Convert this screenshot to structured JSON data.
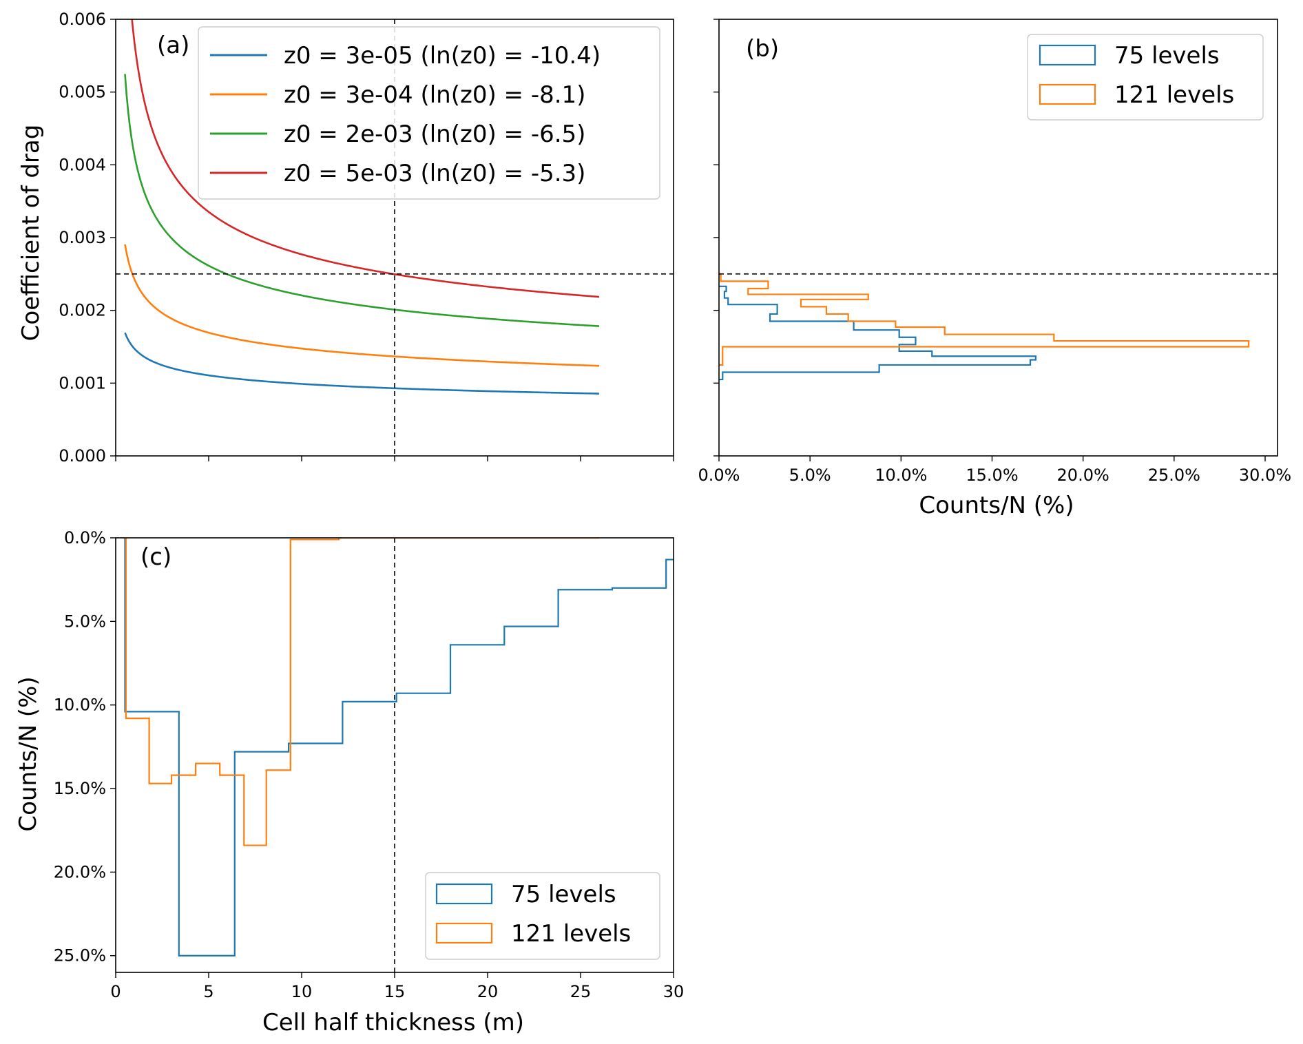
{
  "chart_data": [
    {
      "panel": "a",
      "type": "line",
      "panel_label": "(a)",
      "xlabel": "",
      "ylabel": "Coefficient of drag",
      "xlim": [
        0,
        30
      ],
      "ylim": [
        0,
        0.006
      ],
      "yticks": [
        "0.000",
        "0.001",
        "0.002",
        "0.003",
        "0.004",
        "0.005",
        "0.006"
      ],
      "yticks_values": [
        0,
        0.001,
        0.002,
        0.003,
        0.004,
        0.005,
        0.006
      ],
      "xticks_values": [
        0,
        5,
        10,
        15,
        20,
        25,
        30
      ],
      "legend_position": "top-right",
      "series": [
        {
          "name": "z0 = 3e-05 (ln(z0) = -10.4)",
          "z0": 3e-05,
          "color": "#1f77b4"
        },
        {
          "name": "z0 = 3e-04 (ln(z0) = -8.1)",
          "z0": 0.0003,
          "color": "#ff7f0e"
        },
        {
          "name": "z0 = 2e-03 (ln(z0) = -6.5)",
          "z0": 0.002,
          "color": "#2ca02c"
        },
        {
          "name": "z0 = 5e-03 (ln(z0) = -5.3)",
          "z0": 0.005,
          "color": "#d62728"
        }
      ],
      "x_range": [
        0.5,
        26
      ],
      "hline": 0.0025,
      "vline": 15
    },
    {
      "panel": "b",
      "type": "histogram",
      "panel_label": "(b)",
      "xlabel": "Counts/N (%)",
      "ylabel": "",
      "xlim": [
        0,
        30
      ],
      "ylim": [
        0,
        0.006
      ],
      "xticks": [
        "0.0%",
        "5.0%",
        "10.0%",
        "15.0%",
        "20.0%",
        "25.0%",
        "30.0%"
      ],
      "xticks_values": [
        0,
        5,
        10,
        15,
        20,
        25,
        30
      ],
      "legend_position": "top-right",
      "hline": 0.0025,
      "series": [
        {
          "name": "75 levels",
          "color": "#1f77b4",
          "bins": [
            [
              0.00105,
              0.00115,
              0.2
            ],
            [
              0.00115,
              0.00125,
              8.8
            ],
            [
              0.00125,
              0.00132,
              17.1
            ],
            [
              0.00132,
              0.00137,
              17.4
            ],
            [
              0.00137,
              0.00144,
              11.7
            ],
            [
              0.00144,
              0.00153,
              9.9
            ],
            [
              0.00153,
              0.00163,
              10.8
            ],
            [
              0.00163,
              0.00173,
              9.9
            ],
            [
              0.00173,
              0.00185,
              7.4
            ],
            [
              0.00185,
              0.00195,
              2.8
            ],
            [
              0.00195,
              0.00208,
              3.2
            ],
            [
              0.00208,
              0.00217,
              0.5
            ],
            [
              0.00217,
              0.00226,
              0.3
            ],
            [
              0.00226,
              0.00233,
              0.4
            ]
          ]
        },
        {
          "name": "121 levels",
          "color": "#ff7f0e",
          "bins": [
            [
              0.00125,
              0.0015,
              0.2
            ],
            [
              0.0015,
              0.00158,
              29.1
            ],
            [
              0.00158,
              0.00167,
              18.4
            ],
            [
              0.00167,
              0.00177,
              12.4
            ],
            [
              0.00177,
              0.00185,
              9.7
            ],
            [
              0.00185,
              0.00195,
              7.1
            ],
            [
              0.00195,
              0.00205,
              5.9
            ],
            [
              0.00205,
              0.00215,
              4.5
            ],
            [
              0.00215,
              0.00222,
              8.2
            ],
            [
              0.00222,
              0.0023,
              1.6
            ],
            [
              0.0023,
              0.0024,
              2.7
            ],
            [
              0.0024,
              0.0025,
              0.1
            ]
          ]
        }
      ]
    },
    {
      "panel": "c",
      "type": "histogram",
      "panel_label": "(c)",
      "xlabel": "Cell half thickness (m)",
      "ylabel": "Counts/N (%)",
      "xlim": [
        0,
        30
      ],
      "ylim": [
        26,
        0
      ],
      "xticks": [
        "0",
        "5",
        "10",
        "15",
        "20",
        "25",
        "30"
      ],
      "xticks_values": [
        0,
        5,
        10,
        15,
        20,
        25,
        30
      ],
      "yticks": [
        "0.0%",
        "5.0%",
        "10.0%",
        "15.0%",
        "20.0%",
        "25.0%"
      ],
      "yticks_values": [
        0,
        5,
        10,
        15,
        20,
        25
      ],
      "legend_position": "lower-right",
      "vline": 15,
      "series": [
        {
          "name": "75 levels",
          "color": "#1f77b4",
          "bins": [
            [
              0.5,
              3.4,
              10.4
            ],
            [
              3.4,
              6.4,
              25.0
            ],
            [
              6.4,
              9.3,
              12.8
            ],
            [
              9.3,
              12.2,
              12.3
            ],
            [
              12.2,
              15.1,
              9.8
            ],
            [
              15.1,
              18.0,
              9.3
            ],
            [
              18.0,
              20.9,
              6.4
            ],
            [
              20.9,
              23.8,
              5.3
            ],
            [
              23.8,
              26.7,
              3.1
            ],
            [
              26.7,
              29.6,
              3.0
            ],
            [
              29.6,
              30.5,
              1.3
            ]
          ]
        },
        {
          "name": "121 levels",
          "color": "#ff7f0e",
          "bins": [
            [
              0.4,
              0.55,
              0.0
            ],
            [
              0.55,
              1.8,
              10.8
            ],
            [
              1.8,
              3.0,
              14.7
            ],
            [
              3.0,
              4.3,
              14.2
            ],
            [
              4.3,
              5.6,
              13.5
            ],
            [
              5.6,
              6.9,
              14.2
            ],
            [
              6.9,
              8.1,
              18.4
            ],
            [
              8.1,
              9.4,
              13.9
            ],
            [
              9.4,
              12.0,
              0.1
            ],
            [
              12.0,
              26.0,
              0.0
            ]
          ]
        }
      ]
    }
  ]
}
